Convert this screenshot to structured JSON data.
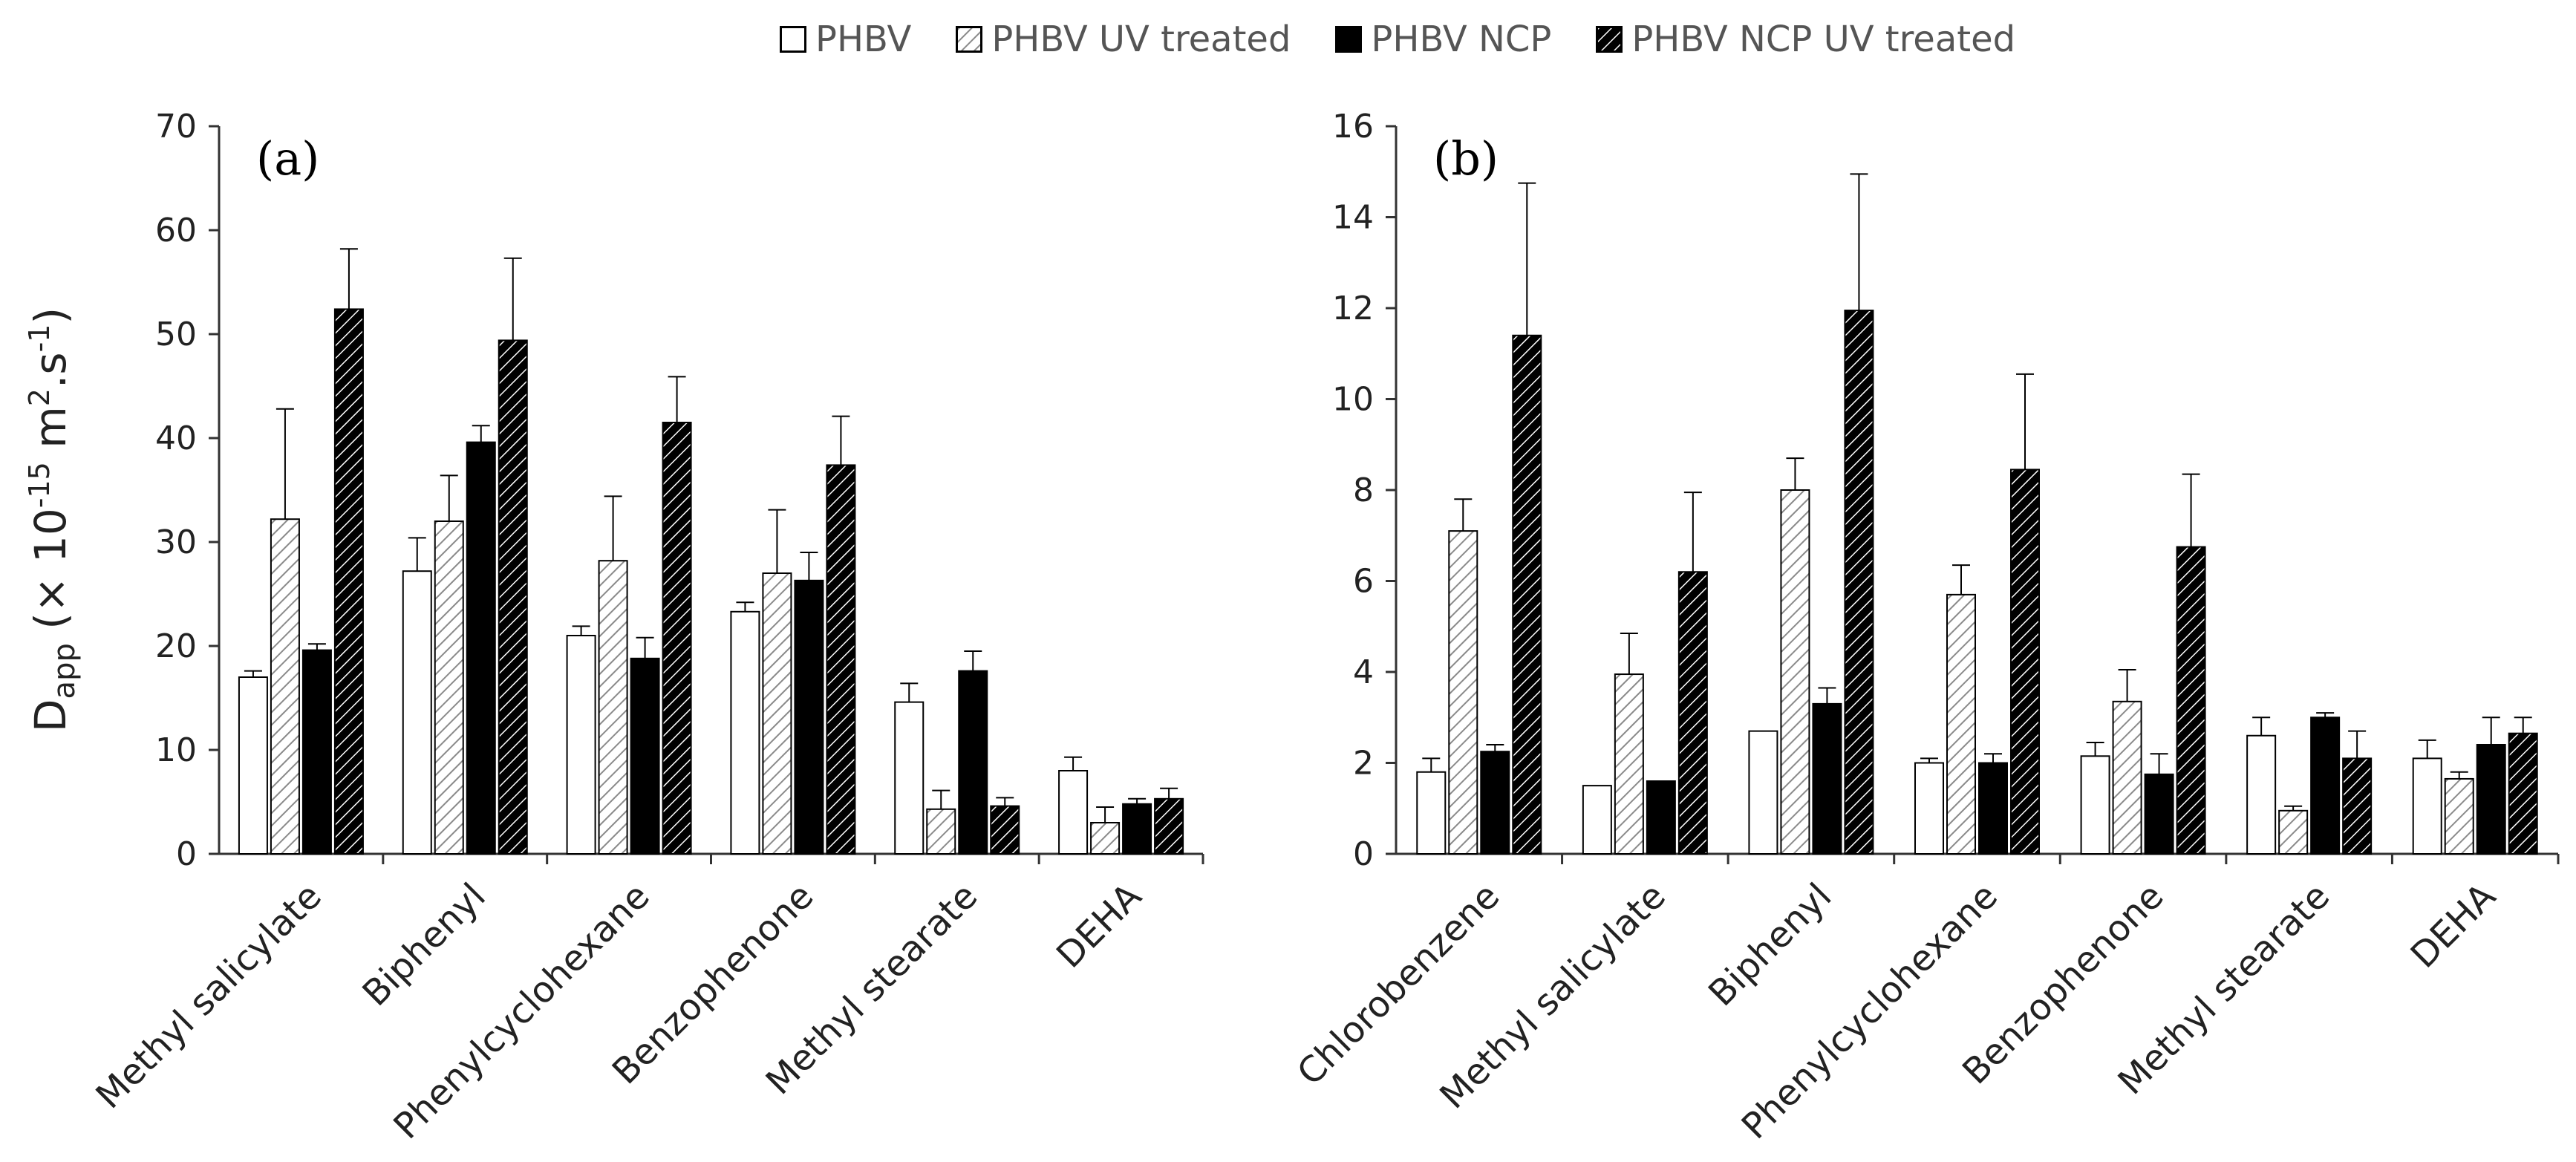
{
  "legend": {
    "items": [
      {
        "label": "PHBV",
        "fill": "white"
      },
      {
        "label": "PHBV UV treated",
        "fill": "light-hatch"
      },
      {
        "label": "PHBV NCP",
        "fill": "black"
      },
      {
        "label": "PHBV NCP UV treated",
        "fill": "dark-hatch"
      }
    ]
  },
  "ylabel": {
    "main": "D",
    "sub": "app",
    "unit_a": " (× 10",
    "exp1": "-15",
    "unit_b": " m",
    "exp2": "2",
    "unit_c": ".s",
    "exp3": "-1",
    "unit_d": ")"
  },
  "colors": {
    "axis": "#333333",
    "black": "#000000",
    "hatch_light": "#8a8a8a"
  },
  "chart_data": [
    {
      "type": "bar",
      "panel_label": "(a)",
      "ylim": [
        0,
        70
      ],
      "yticks": [
        0,
        10,
        20,
        30,
        40,
        50,
        60,
        70
      ],
      "categories": [
        "Methyl salicylate",
        "Biphenyl",
        "Phenylcyclohexane",
        "Benzophenone",
        "Methyl stearate",
        "DEHA"
      ],
      "series": [
        {
          "name": "PHBV",
          "values": [
            17.0,
            27.2,
            21.0,
            23.3,
            14.6,
            8.0
          ],
          "errors": [
            0.6,
            3.2,
            0.9,
            0.9,
            1.8,
            1.3
          ]
        },
        {
          "name": "PHBV UV treated",
          "values": [
            32.2,
            32.0,
            28.2,
            27.0,
            4.3,
            3.0
          ],
          "errors": [
            10.6,
            4.4,
            6.2,
            6.1,
            1.8,
            1.5
          ]
        },
        {
          "name": "PHBV NCP",
          "values": [
            19.6,
            39.6,
            18.8,
            26.3,
            17.6,
            4.8
          ],
          "errors": [
            0.6,
            1.6,
            2.0,
            2.7,
            1.9,
            0.5
          ]
        },
        {
          "name": "PHBV NCP UV treated",
          "values": [
            52.4,
            49.4,
            41.5,
            37.4,
            4.6,
            5.3
          ],
          "errors": [
            5.8,
            7.9,
            4.4,
            4.7,
            0.8,
            1.0
          ]
        }
      ]
    },
    {
      "type": "bar",
      "panel_label": "(b)",
      "ylim": [
        0,
        16
      ],
      "yticks": [
        0,
        2,
        4,
        6,
        8,
        10,
        12,
        14,
        16
      ],
      "categories": [
        "Chlorobenzene",
        "Methyl salicylate",
        "Biphenyl",
        "Phenylcyclohexane",
        "Benzophenone",
        "Methyl stearate",
        "DEHA"
      ],
      "series": [
        {
          "name": "PHBV",
          "values": [
            1.8,
            1.5,
            2.7,
            2.0,
            2.15,
            2.6,
            2.1
          ],
          "errors": [
            0.3,
            0.0,
            0.0,
            0.1,
            0.3,
            0.4,
            0.4
          ]
        },
        {
          "name": "PHBV UV treated",
          "values": [
            7.1,
            3.95,
            8.0,
            5.7,
            3.35,
            0.95,
            1.65
          ],
          "errors": [
            0.7,
            0.9,
            0.7,
            0.65,
            0.7,
            0.1,
            0.15
          ]
        },
        {
          "name": "PHBV NCP",
          "values": [
            2.25,
            1.6,
            3.3,
            2.0,
            1.75,
            3.0,
            2.4
          ],
          "errors": [
            0.15,
            0.0,
            0.35,
            0.2,
            0.45,
            0.1,
            0.6
          ]
        },
        {
          "name": "PHBV NCP UV treated",
          "values": [
            11.4,
            6.2,
            11.95,
            8.45,
            6.75,
            2.1,
            2.65
          ],
          "errors": [
            3.35,
            1.75,
            3.0,
            2.1,
            1.6,
            0.6,
            0.35
          ]
        }
      ]
    }
  ]
}
